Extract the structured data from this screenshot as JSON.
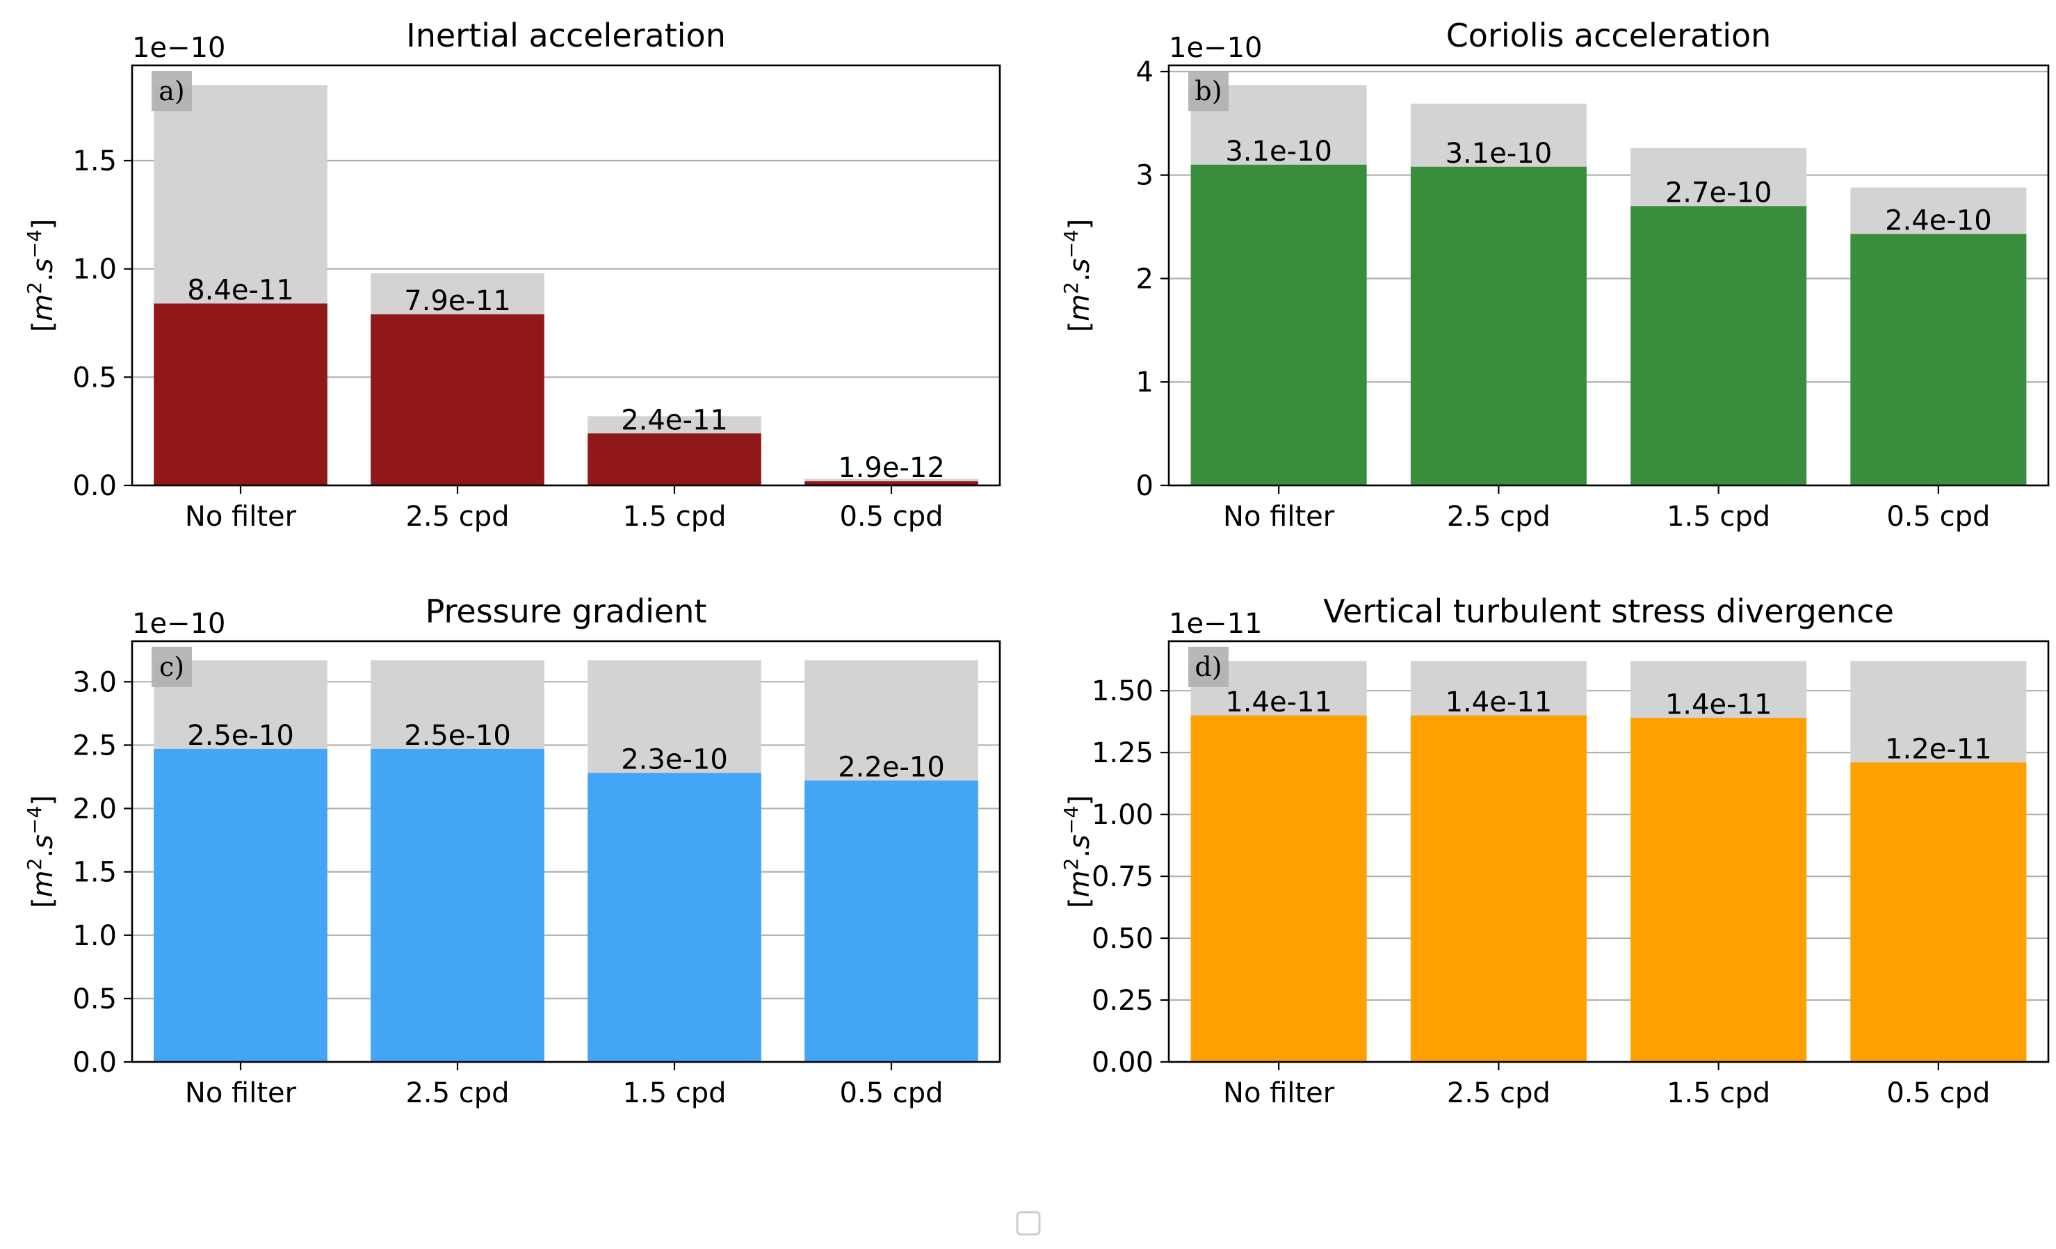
{
  "chart_data": [
    {
      "panel": "a)",
      "type": "bar",
      "title": "Inertial acceleration",
      "ylabel": "[m2.s-4]",
      "offset_text": "1e−10",
      "scale": 1e-10,
      "categories": [
        "No filter",
        "2.5 cpd",
        "1.5 cpd",
        "0.5 cpd"
      ],
      "series": [
        {
          "values": [
            1.85e-10,
            9.8e-11,
            3.2e-11,
            3e-12
          ],
          "color": "#d3d3d3"
        },
        {
          "values": [
            8.4e-11,
            7.9e-11,
            2.4e-11,
            1.9e-12
          ],
          "color": "#911818"
        }
      ],
      "data_labels": [
        "8.4e-11",
        "7.9e-11",
        "2.4e-11",
        "1.9e-12"
      ],
      "yticks": [
        0,
        0.5,
        1.0,
        1.5
      ],
      "ytick_labels": [
        "0.0",
        "0.5",
        "1.0",
        "1.5"
      ],
      "ylim": [
        0,
        1.94
      ],
      "grid": "y"
    },
    {
      "panel": "b)",
      "type": "bar",
      "title": "Coriolis acceleration",
      "ylabel": "[m2.s-4]",
      "offset_text": "1e−10",
      "scale": 1e-10,
      "categories": [
        "No filter",
        "2.5 cpd",
        "1.5 cpd",
        "0.5 cpd"
      ],
      "series": [
        {
          "values": [
            3.87e-10,
            3.69e-10,
            3.26e-10,
            2.88e-10
          ],
          "color": "#d3d3d3"
        },
        {
          "values": [
            3.1e-10,
            3.08e-10,
            2.7e-10,
            2.43e-10
          ],
          "color": "#388e3c"
        }
      ],
      "data_labels": [
        "3.1e-10",
        "3.1e-10",
        "2.7e-10",
        "2.4e-10"
      ],
      "yticks": [
        0,
        1,
        2,
        3,
        4
      ],
      "ytick_labels": [
        "0",
        "1",
        "2",
        "3",
        "4"
      ],
      "ylim": [
        0,
        4.06
      ],
      "grid": "y"
    },
    {
      "panel": "c)",
      "type": "bar",
      "title": "Pressure gradient",
      "ylabel": "[m2.s-4]",
      "offset_text": "1e−10",
      "scale": 1e-10,
      "categories": [
        "No filter",
        "2.5 cpd",
        "1.5 cpd",
        "0.5 cpd"
      ],
      "series": [
        {
          "values": [
            3.17e-10,
            3.17e-10,
            3.17e-10,
            3.17e-10
          ],
          "color": "#d3d3d3"
        },
        {
          "values": [
            2.47e-10,
            2.47e-10,
            2.28e-10,
            2.22e-10
          ],
          "color": "#42a5f5"
        }
      ],
      "data_labels": [
        "2.5e-10",
        "2.5e-10",
        "2.3e-10",
        "2.2e-10"
      ],
      "yticks": [
        0,
        0.5,
        1.0,
        1.5,
        2.0,
        2.5,
        3.0
      ],
      "ytick_labels": [
        "0.0",
        "0.5",
        "1.0",
        "1.5",
        "2.0",
        "2.5",
        "3.0"
      ],
      "ylim": [
        0,
        3.32
      ],
      "grid": "y"
    },
    {
      "panel": "d)",
      "type": "bar",
      "title": "Vertical turbulent stress divergence",
      "ylabel": "[m2.s-4]",
      "offset_text": "1e−11",
      "scale": 1e-11,
      "categories": [
        "No filter",
        "2.5 cpd",
        "1.5 cpd",
        "0.5 cpd"
      ],
      "series": [
        {
          "values": [
            1.62e-11,
            1.62e-11,
            1.62e-11,
            1.62e-11
          ],
          "color": "#d3d3d3"
        },
        {
          "values": [
            1.4e-11,
            1.4e-11,
            1.39e-11,
            1.21e-11
          ],
          "color": "#ffa000"
        }
      ],
      "data_labels": [
        "1.4e-11",
        "1.4e-11",
        "1.4e-11",
        "1.2e-11"
      ],
      "yticks": [
        0,
        0.25,
        0.5,
        0.75,
        1.0,
        1.25,
        1.5
      ],
      "ytick_labels": [
        "0.00",
        "0.25",
        "0.50",
        "0.75",
        "1.00",
        "1.25",
        "1.50"
      ],
      "ylim": [
        0,
        1.7
      ],
      "grid": "y"
    }
  ],
  "legend": {
    "entries": [],
    "placement": "bottom-center"
  }
}
